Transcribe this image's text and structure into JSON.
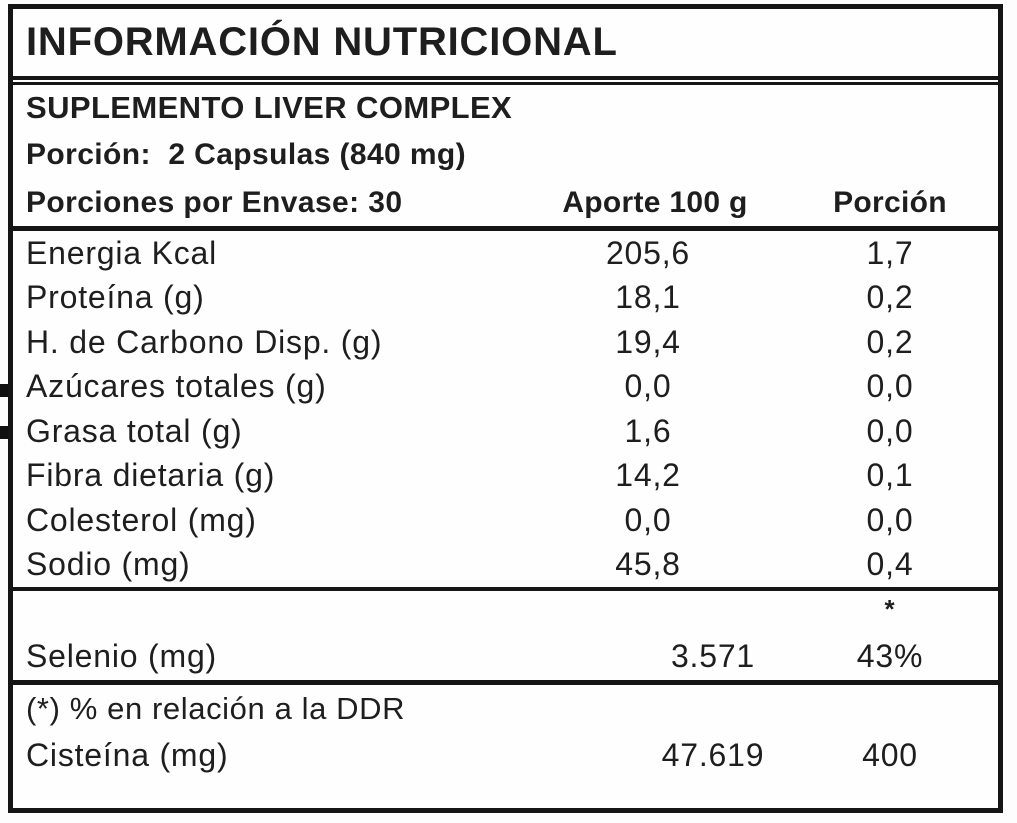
{
  "table": {
    "title": "INFORMACIÓN NUTRICIONAL",
    "product": "SUPLEMENTO LIVER COMPLEX",
    "serving": "Porción:  2 Capsulas (840 mg)",
    "servings_per_container": "Porciones por Envase: 30",
    "columns": {
      "per100": "Aporte 100 g",
      "portion": "Porción"
    },
    "rows": [
      {
        "label": "Energia Kcal",
        "per100": "205,6",
        "portion": "1,7"
      },
      {
        "label": "Proteína (g)",
        "per100": "18,1",
        "portion": "0,2"
      },
      {
        "label": "H. de Carbono Disp. (g)",
        "per100": "19,4",
        "portion": "0,2"
      },
      {
        "label": "Azúcares totales (g)",
        "per100": "0,0",
        "portion": "0,0"
      },
      {
        "label": "Grasa total (g)",
        "per100": "1,6",
        "portion": "0,0"
      },
      {
        "label": "Fibra dietaria (g)",
        "per100": "14,2",
        "portion": "0,1"
      },
      {
        "label": "Colesterol (mg)",
        "per100": "0,0",
        "portion": "0,0"
      },
      {
        "label": "Sodio (mg)",
        "per100": "45,8",
        "portion": "0,4"
      }
    ],
    "selenium_section": {
      "asterisk": "*",
      "label": "Selenio (mg)",
      "per100": "3.571",
      "portion": "43%"
    },
    "footer": {
      "note": "(*) % en relación a la DDR",
      "label": "Cisteína (mg)",
      "per100": "47.619",
      "portion": "400"
    }
  }
}
